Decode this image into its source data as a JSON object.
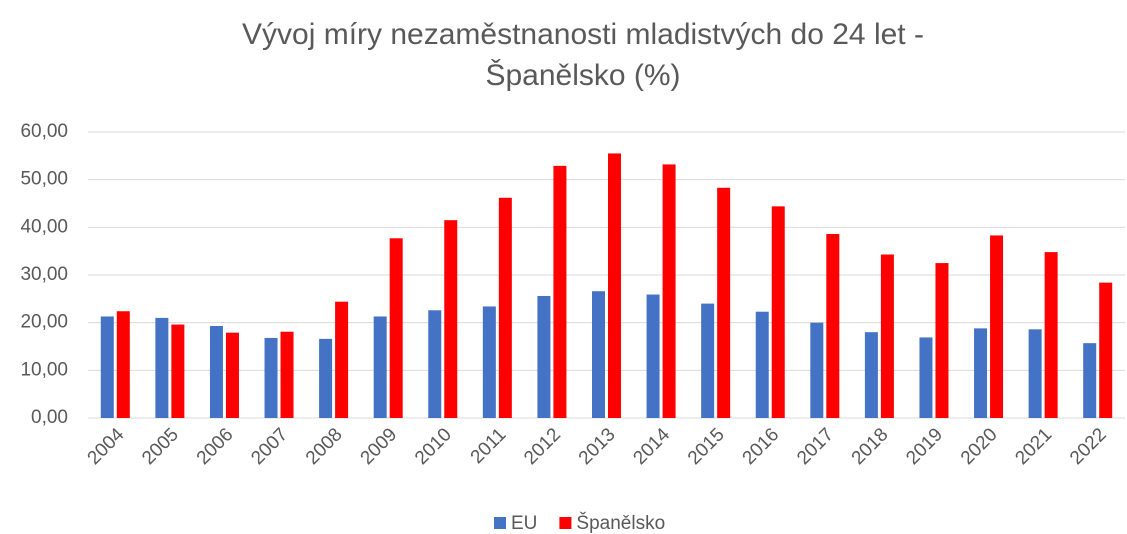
{
  "chart_data": {
    "type": "bar",
    "title": [
      "Vývoj míry nezaměstnanosti mladistvých do 24 let  -",
      "Španělsko (%)"
    ],
    "categories": [
      "2004",
      "2005",
      "2006",
      "2007",
      "2008",
      "2009",
      "2010",
      "2011",
      "2012",
      "2013",
      "2014",
      "2015",
      "2016",
      "2017",
      "2018",
      "2019",
      "2020",
      "2021",
      "2022"
    ],
    "series": [
      {
        "name": "EU",
        "color": "#4472c4",
        "values": [
          21.3,
          21.0,
          19.3,
          16.8,
          16.6,
          21.3,
          22.6,
          23.4,
          25.6,
          26.6,
          25.9,
          24.0,
          22.3,
          20.0,
          18.0,
          16.9,
          18.8,
          18.6,
          15.7
        ]
      },
      {
        "name": "Španělsko",
        "color": "#ff0000",
        "values": [
          22.4,
          19.6,
          17.9,
          18.1,
          24.4,
          37.7,
          41.5,
          46.2,
          52.9,
          55.5,
          53.2,
          48.3,
          44.4,
          38.6,
          34.3,
          32.5,
          38.3,
          34.8,
          28.4
        ]
      }
    ],
    "ylim": [
      0,
      60
    ],
    "yticks": [
      {
        "value": 0,
        "label": "0,00"
      },
      {
        "value": 10,
        "label": "10,00"
      },
      {
        "value": 20,
        "label": "20,00"
      },
      {
        "value": 30,
        "label": "30,00"
      },
      {
        "value": 40,
        "label": "40,00"
      },
      {
        "value": 50,
        "label": "50,00"
      },
      {
        "value": 60,
        "label": "60,00"
      }
    ],
    "grid": true,
    "legend": "bottom"
  }
}
